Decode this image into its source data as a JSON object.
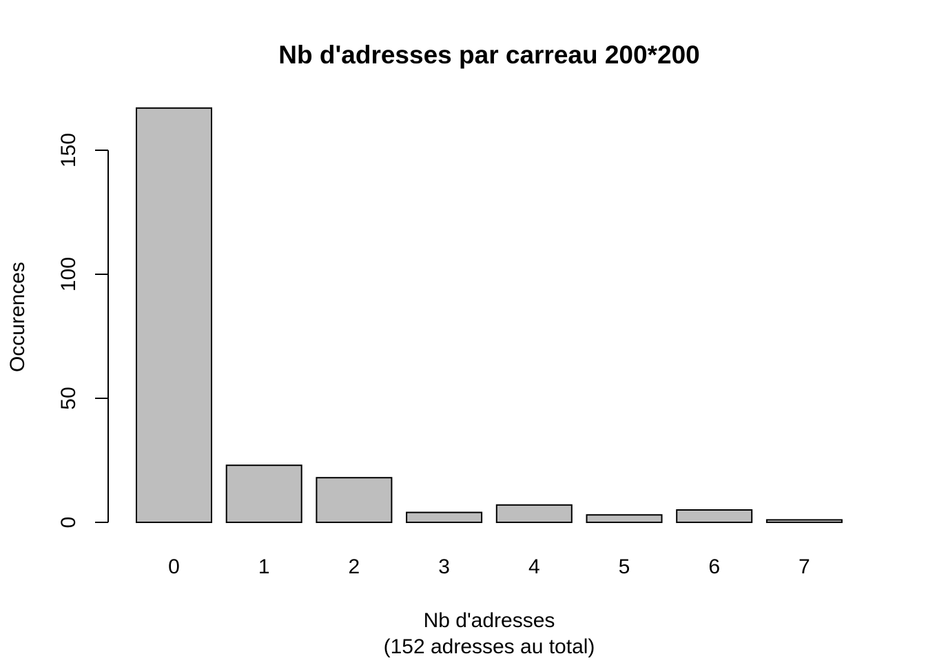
{
  "chart_data": {
    "type": "bar",
    "title": "Nb d'adresses par carreau 200*200",
    "xlabel": "Nb d'adresses",
    "xlabel_sub": "(152 adresses au total)",
    "ylabel": "Occurences",
    "categories": [
      "0",
      "1",
      "2",
      "3",
      "4",
      "5",
      "6",
      "7"
    ],
    "values": [
      167,
      23,
      18,
      4,
      7,
      3,
      5,
      1
    ],
    "ylim": [
      0,
      167
    ],
    "yticks": [
      0,
      50,
      100,
      150
    ],
    "bar_color": "#bebebe",
    "bar_border_color": "#000000",
    "grid": false,
    "legend": "none"
  }
}
